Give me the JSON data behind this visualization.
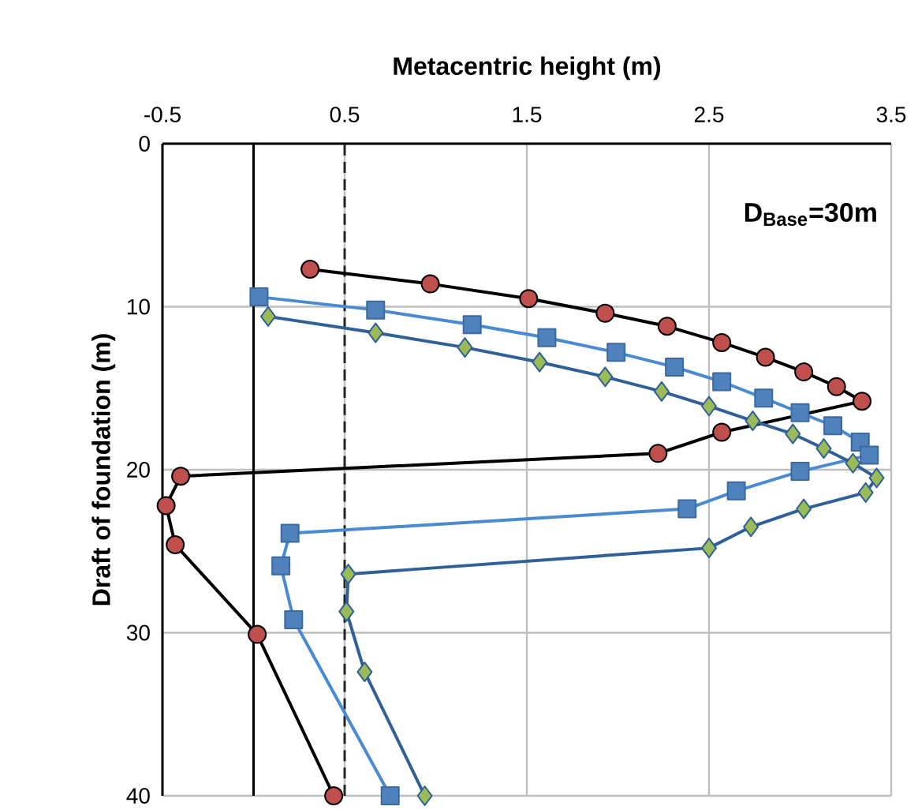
{
  "chart_data": {
    "type": "line",
    "xlabel": "Metacentric height (m)",
    "ylabel": "Draft of foundation (m)",
    "xlim": [
      -0.5,
      3.5
    ],
    "xticks": [
      -0.5,
      0.5,
      1.5,
      2.5,
      3.5
    ],
    "ylim": [
      40,
      0
    ],
    "yticks": [
      0,
      10,
      20,
      30,
      40
    ],
    "grid": true,
    "annotations": [
      "D$_{Base}$=30m"
    ],
    "ref_lines": [
      {
        "axis": "x",
        "value": 0,
        "color": "#000000",
        "line_style": "solid"
      },
      {
        "axis": "x",
        "value": 0.5,
        "color": "#262626",
        "line_style": "dashed"
      }
    ],
    "series": [
      {
        "color": "#000000",
        "marker": "circle",
        "x": [
          0.31,
          0.97,
          1.51,
          1.93,
          2.27,
          2.57,
          2.81,
          3.02,
          3.2,
          3.34,
          2.57,
          2.22,
          -0.4,
          -0.48,
          -0.43,
          0.02,
          0.44
        ],
        "values": [
          7.7,
          8.6,
          9.5,
          10.4,
          11.2,
          12.2,
          13.1,
          14.0,
          14.9,
          15.8,
          17.7,
          19.0,
          20.4,
          22.2,
          24.6,
          30.1,
          40
        ]
      },
      {
        "color": "#4a8ad0",
        "marker": "square",
        "x": [
          0.03,
          0.67,
          1.2,
          1.61,
          1.99,
          2.31,
          2.57,
          2.8,
          3.0,
          3.18,
          3.33,
          3.38,
          3.0,
          2.65,
          2.38,
          0.2,
          0.15,
          0.22,
          0.75
        ],
        "values": [
          9.4,
          10.2,
          11.1,
          11.9,
          12.8,
          13.7,
          14.6,
          15.6,
          16.5,
          17.3,
          18.3,
          19.1,
          20.1,
          21.3,
          22.4,
          23.9,
          25.9,
          29.2,
          40
        ]
      },
      {
        "color": "#2f6097",
        "marker": "diamond",
        "x": [
          0.08,
          0.67,
          1.16,
          1.57,
          1.93,
          2.24,
          2.5,
          2.74,
          2.96,
          3.13,
          3.29,
          3.42,
          3.36,
          3.02,
          2.73,
          2.5,
          0.52,
          0.51,
          0.61,
          0.94
        ],
        "values": [
          10.6,
          11.6,
          12.5,
          13.4,
          14.3,
          15.2,
          16.1,
          17.0,
          17.8,
          18.7,
          19.6,
          20.5,
          21.4,
          22.4,
          23.5,
          24.8,
          26.4,
          28.7,
          32.4,
          40
        ]
      }
    ]
  }
}
